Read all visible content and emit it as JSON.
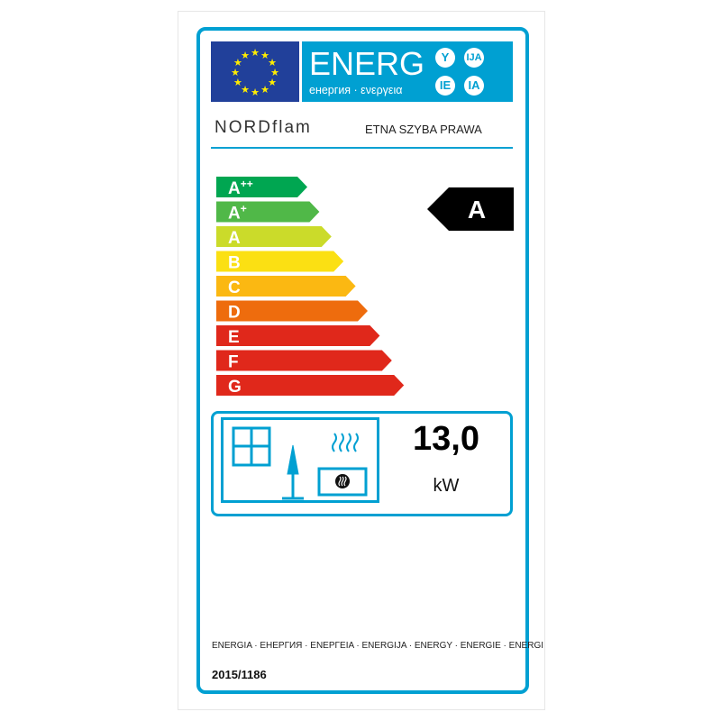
{
  "header": {
    "energ_title": "ENERG",
    "energ_subtitle": "енергия · ενεργεια",
    "suffixes": [
      "Y",
      "IJA",
      "IE",
      "IA"
    ]
  },
  "supplier": {
    "brand": "NORDflam",
    "model": "ETNA SZYBA PRAWA"
  },
  "scale": {
    "classes": [
      {
        "label": "A",
        "sup": "++",
        "color": "#00a651"
      },
      {
        "label": "A",
        "sup": "+",
        "color": "#50b848"
      },
      {
        "label": "A",
        "sup": "",
        "color": "#cbdb2a"
      },
      {
        "label": "B",
        "sup": "",
        "color": "#fbe013"
      },
      {
        "label": "C",
        "sup": "",
        "color": "#fbb812"
      },
      {
        "label": "D",
        "sup": "",
        "color": "#ee6c0d"
      },
      {
        "label": "E",
        "sup": "",
        "color": "#e0281b"
      },
      {
        "label": "F",
        "sup": "",
        "color": "#e0281b"
      },
      {
        "label": "G",
        "sup": "",
        "color": "#e0281b"
      }
    ],
    "rating": "A"
  },
  "output": {
    "value": "13,0",
    "unit": "kW"
  },
  "footer": {
    "languages": "ENERGIA · ЕНЕРГИЯ · ENEPΓEIA · ENERGIJA · ENERGY · ENERGIE · ENERGI",
    "regulation": "2015/1186"
  },
  "colors": {
    "frame": "#00a0d2",
    "eu_flag": "#21409a",
    "eu_stars": "#ffed00"
  }
}
